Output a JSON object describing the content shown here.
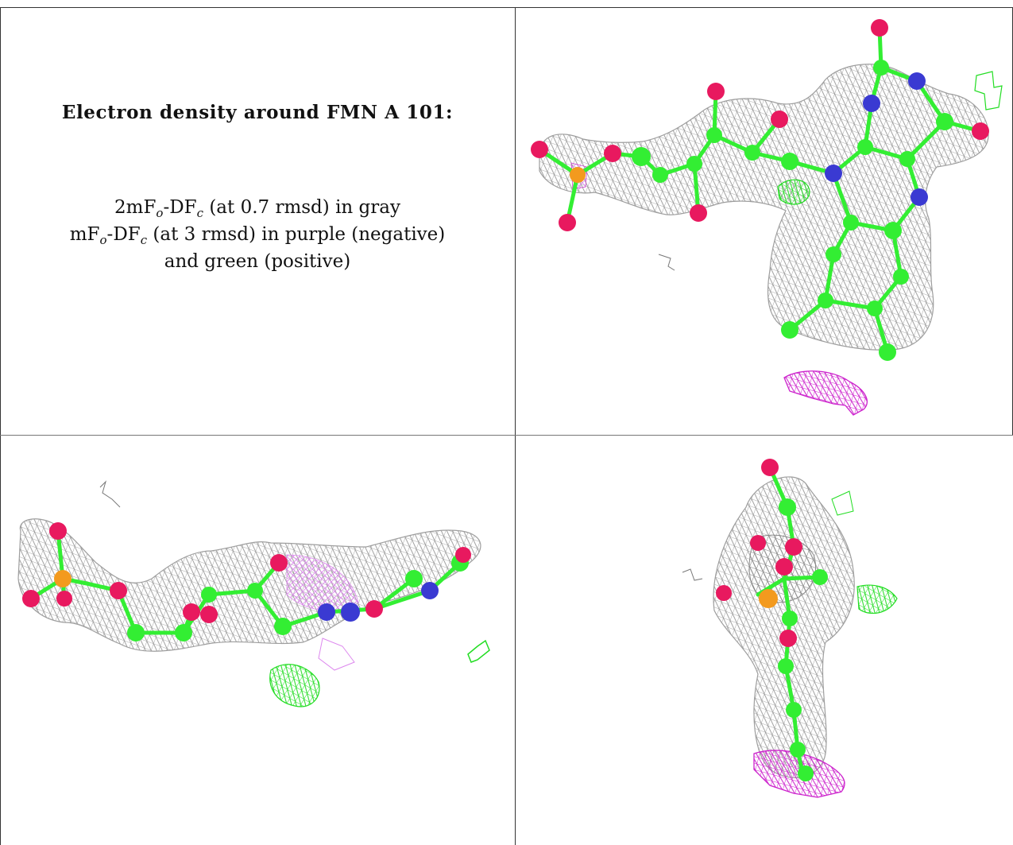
{
  "caption": {
    "title": "Electron density around FMN A 101:",
    "line1": {
      "a": "2mF",
      "b": "o",
      "c": "-DF",
      "d": "c",
      "e": " (at 0.7 rmsd) in gray"
    },
    "line2": {
      "a": "mF",
      "b": "o",
      "c": "-DF",
      "d": "c",
      "e": " (at 3 rmsd) in purple (negative)"
    },
    "line3": "and green (positive)"
  },
  "colors": {
    "mesh_2fofc": "#8a8a8a",
    "mesh_negative": "#cc22cc",
    "mesh_positive": "#22dd22",
    "carbon": "#33ee33",
    "oxygen": "#e8195f",
    "nitrogen": "#3a3ad2",
    "phosphorus": "#f39a1e",
    "grid_line": "#333333"
  }
}
